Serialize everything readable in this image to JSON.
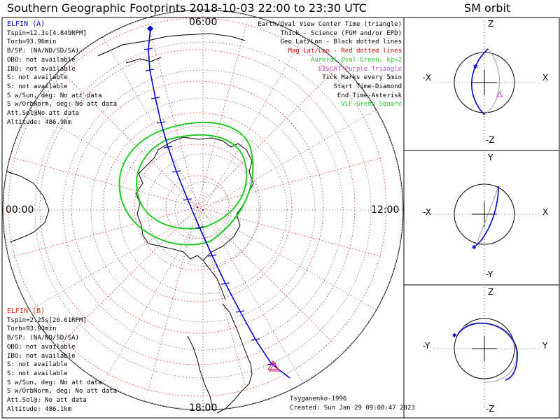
{
  "title": "Southern Geographic Footprints 2018-10-03 22:00 to 23:30 UTC",
  "right_title": "SM orbit",
  "clock_labels": {
    "top": "06:00",
    "left": "00:00",
    "right": "12:00",
    "bottom": "18:00"
  },
  "legend": [
    {
      "text": "Earth/Oval View Center Time (triangle)",
      "color": "#000000"
    },
    {
      "text": "Thick - Science (FGM and/or EPD)",
      "color": "#000000"
    },
    {
      "text": "Geo Lat/Lon - Black dotted lines",
      "color": "#000000"
    },
    {
      "text": "Mag Lat/Lon - Red dotted lines",
      "color": "#e00000"
    },
    {
      "text": "Auroral Oval-Green, kp=2",
      "color": "#22cc22"
    },
    {
      "text": "EISCAT-Purple Triangle",
      "color": "#cc44cc"
    },
    {
      "text": "Tick Marks every 5min",
      "color": "#000000"
    },
    {
      "text": "Start Time-Diamond",
      "color": "#000000"
    },
    {
      "text": "End Time-Asterisk",
      "color": "#000000"
    },
    {
      "text": "VLF-Green Square",
      "color": "#22cc22"
    }
  ],
  "elfin_a": {
    "name": "ELFIN (A)",
    "color": "#0000cc",
    "lines": [
      "Tspin=12.3s[4.849RPM]",
      "Torb=93.96min",
      "B/SP: (NA/ND/SD/SA)",
      "OBO: not available",
      "IBO: not available",
      "S: not available",
      "S: not available",
      "S w/Sun, deg: No att data",
      "S w/OrbNorm, deg: No att data",
      "Att.Sol@No att data",
      "Altitude: 486.9km"
    ]
  },
  "elfin_b": {
    "name": "ELFIN (B)",
    "color": "#e03020",
    "lines": [
      "Tspin=2.25s[26.61RPM]",
      "Torb=93.93min",
      "B/SP: (NA/ND/SD/SA)",
      "OBO: not available",
      "IBO: not available",
      "S: not available",
      "S: not available",
      "S w/Sun, deg: No att data",
      "S w/OrbNorm, deg: No att data",
      "Att.Sol@: No att data",
      "Altitude: 486.1km"
    ]
  },
  "footer": {
    "model": "Tsyganenko-1996",
    "created": "Created: Sun Jan 29 09:08:47 2023"
  },
  "orbit_panels": [
    {
      "axes": {
        "top": "Z",
        "bottom": "-Z",
        "left": "-X",
        "right": "X"
      }
    },
    {
      "axes": {
        "top": "Y",
        "bottom": "-Y",
        "left": "-X",
        "right": "X"
      }
    },
    {
      "axes": {
        "top": "Z",
        "bottom": "-Z",
        "left": "-Y",
        "right": "Y"
      }
    }
  ],
  "colors": {
    "track": "#0000cc",
    "geo_grid": "#000000",
    "mag_grid": "#e00000",
    "oval": "#22cc22",
    "eiscat": "#cc44cc",
    "orbit_other": "#aaaaaa"
  },
  "chart_data": {
    "type": "scatter",
    "projection": "south-polar, magnetic local time at edge",
    "track_ticks_every_min": 5,
    "mlt_ticks": [
      "06:00",
      "00:00",
      "12:00",
      "18:00"
    ]
  }
}
